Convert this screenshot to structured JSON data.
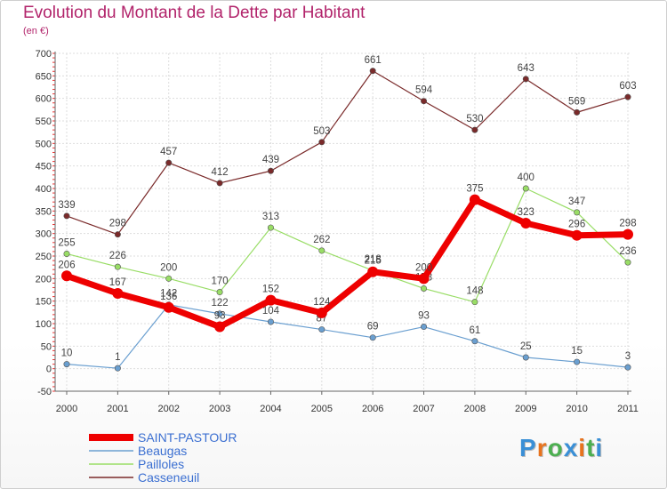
{
  "title": "Evolution du Montant de la Dette par Habitant",
  "unit_label": "(en €)",
  "logo": {
    "text": "Proxiti",
    "colors": [
      "#3a8fd6",
      "#e8731d",
      "#4caf50",
      "#3a8fd6",
      "#e8731d",
      "#4caf50",
      "#3a8fd6"
    ]
  },
  "chart_data": {
    "type": "line",
    "title": "Evolution du Montant de la Dette par Habitant",
    "ylabel": "(en €)",
    "xlabel": "",
    "x": [
      "2000",
      "2001",
      "2002",
      "2003",
      "2004",
      "2005",
      "2006",
      "2007",
      "2008",
      "2009",
      "2010",
      "2011"
    ],
    "ylim": [
      -50,
      700
    ],
    "yticks": [
      -50,
      0,
      50,
      100,
      150,
      200,
      250,
      300,
      350,
      400,
      450,
      500,
      550,
      600,
      650,
      700
    ],
    "grid": true,
    "legend_position": "bottom-left",
    "series": [
      {
        "name": "SAINT-PASTOUR",
        "color": "#ee0000",
        "values": [
          206,
          167,
          136,
          93,
          152,
          124,
          215,
          200,
          375,
          323,
          296,
          298
        ]
      },
      {
        "name": "Beaugas",
        "color": "#6a9fd0",
        "values": [
          10,
          1,
          142,
          122,
          104,
          87,
          69,
          93,
          61,
          25,
          15,
          3
        ]
      },
      {
        "name": "Pailloles",
        "color": "#99dd66",
        "values": [
          255,
          226,
          200,
          170,
          313,
          262,
          218,
          178,
          148,
          400,
          347,
          236
        ]
      },
      {
        "name": "Casseneuil",
        "color": "#7a2a2a",
        "values": [
          339,
          298,
          457,
          412,
          439,
          503,
          661,
          594,
          530,
          643,
          569,
          603
        ]
      }
    ]
  }
}
